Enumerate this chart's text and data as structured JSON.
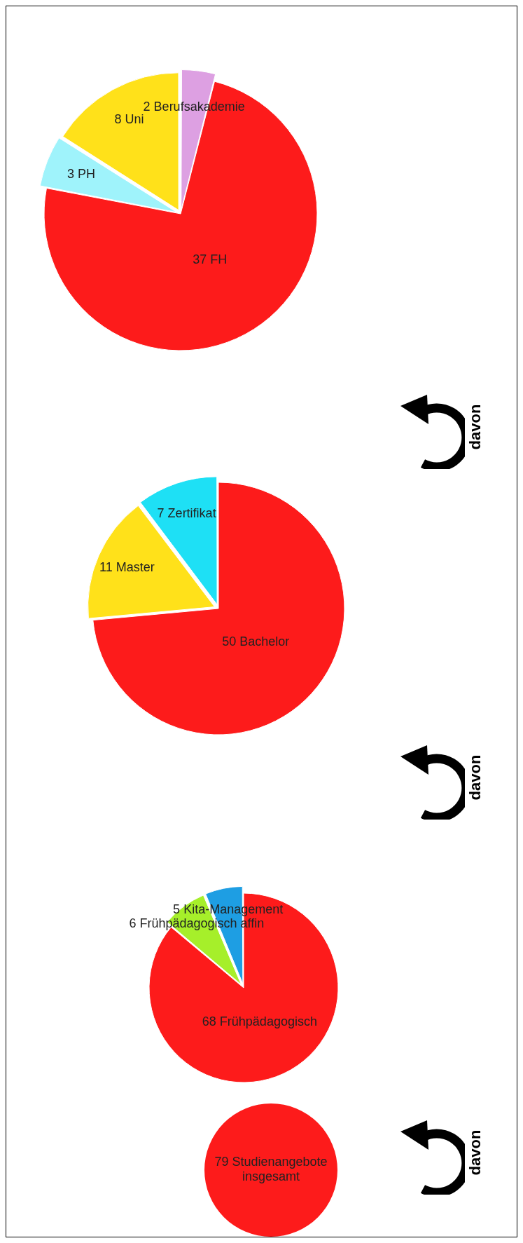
{
  "chart_data": [
    {
      "type": "pie",
      "categories": [
        "Studienangebote insgesamt"
      ],
      "values": [
        79
      ],
      "colors": [
        "#fd1b1b"
      ],
      "data_labels": true
    },
    {
      "type": "pie",
      "categories": [
        "Frühpädagogisch",
        "Frühpädagogisch affin",
        "Kita-Management"
      ],
      "values": [
        68,
        6,
        5
      ],
      "colors": [
        "#fd1b1b",
        "#a6ef2a",
        "#1e9ee3"
      ],
      "data_labels": true,
      "annotations": [
        "davon"
      ]
    },
    {
      "type": "pie",
      "categories": [
        "Bachelor",
        "Master",
        "Zertifikat"
      ],
      "values": [
        50,
        11,
        7
      ],
      "colors": [
        "#fd1b1b",
        "#ffe11a",
        "#1ee0f5"
      ],
      "data_labels": true,
      "annotations": [
        "davon"
      ]
    },
    {
      "type": "pie",
      "categories": [
        "Berufsakademie",
        "FH",
        "PH",
        "Uni"
      ],
      "values": [
        2,
        37,
        3,
        8
      ],
      "colors": [
        "#dda0e2",
        "#fd1b1b",
        "#9ff3fb",
        "#ffe11a"
      ],
      "data_labels": true,
      "annotations": [
        "davon"
      ]
    }
  ]
}
